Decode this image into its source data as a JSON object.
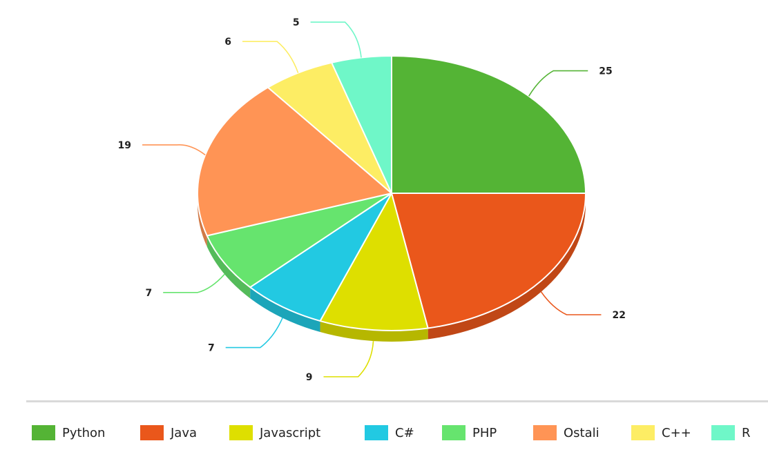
{
  "chart_data": {
    "type": "pie",
    "title": "",
    "legend_position": "bottom",
    "slices": [
      {
        "name": "Python",
        "value": 25,
        "color": "#54b435"
      },
      {
        "name": "Java",
        "value": 22,
        "color": "#ea571b"
      },
      {
        "name": "Javascript",
        "value": 9,
        "color": "#dedf00"
      },
      {
        "name": "C#",
        "value": 7,
        "color": "#22c9e2"
      },
      {
        "name": "PHP",
        "value": 7,
        "color": "#66e46e"
      },
      {
        "name": "Ostali",
        "value": 19,
        "color": "#ff9455"
      },
      {
        "name": "C++",
        "value": 6,
        "color": "#fded64"
      },
      {
        "name": "R",
        "value": 5,
        "color": "#6ff7c8"
      }
    ]
  }
}
